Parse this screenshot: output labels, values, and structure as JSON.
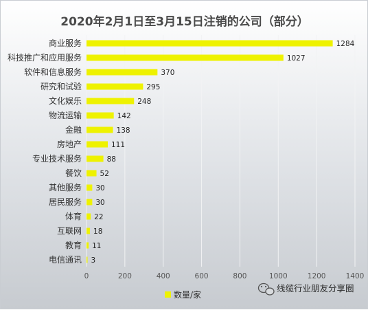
{
  "chart_data": {
    "type": "bar",
    "orientation": "horizontal",
    "title": "2020年2月1日至3月15日注销的公司（部分）",
    "categories": [
      "商业服务",
      "科技推广和应用服务",
      "软件和信息服务",
      "研究和试验",
      "文化娱乐",
      "物流运输",
      "金融",
      "房地产",
      "专业技术服务",
      "餐饮",
      "其他服务",
      "居民服务",
      "体育",
      "互联网",
      "教育",
      "电信通讯"
    ],
    "series": [
      {
        "name": "数量/家",
        "values": [
          1284,
          1027,
          370,
          295,
          248,
          142,
          138,
          111,
          88,
          52,
          30,
          30,
          22,
          18,
          11,
          3
        ]
      }
    ],
    "xlim": [
      0,
      1400
    ],
    "xticks": [
      0,
      200,
      400,
      600,
      800,
      1000,
      1200,
      1400
    ],
    "grid": true,
    "legend_position": "bottom",
    "bar_color": "#eef200"
  },
  "watermark": {
    "icon": "wechat-icon",
    "text": "线缆行业朋友分享圈"
  }
}
